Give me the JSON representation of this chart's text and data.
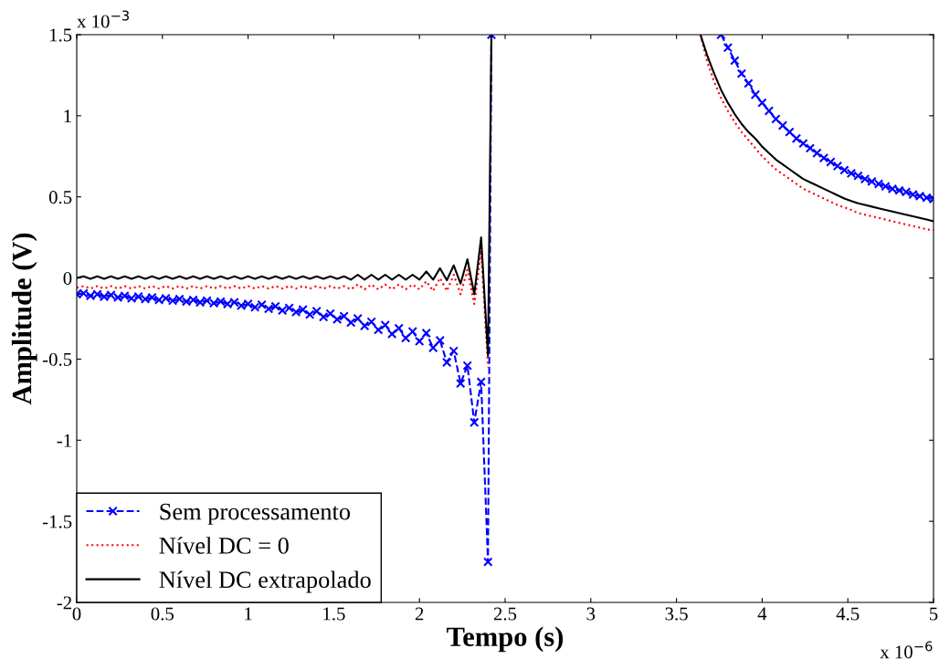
{
  "chart_data": {
    "type": "line",
    "xlabel": "Tempo (s)",
    "ylabel": "Amplitude (V)",
    "annotations": [
      "x 10$^{−3}$",
      "x 10$^{−6}$"
    ],
    "x": [
      0,
      0.04,
      0.08,
      0.12,
      0.16,
      0.2,
      0.24,
      0.28,
      0.32,
      0.36,
      0.4,
      0.44,
      0.48,
      0.52,
      0.56,
      0.6,
      0.64,
      0.68,
      0.72,
      0.76,
      0.8,
      0.84,
      0.88,
      0.92,
      0.96,
      1.0,
      1.04,
      1.08,
      1.12,
      1.16,
      1.2,
      1.24,
      1.28,
      1.32,
      1.36,
      1.4,
      1.44,
      1.48,
      1.52,
      1.56,
      1.6,
      1.64,
      1.68,
      1.72,
      1.76,
      1.8,
      1.84,
      1.88,
      1.92,
      1.96,
      2.0,
      2.04,
      2.08,
      2.12,
      2.16,
      2.2,
      2.24,
      2.28,
      2.32,
      2.36,
      2.4,
      2.42,
      3.0,
      3.64,
      3.68,
      3.72,
      3.76,
      3.8,
      3.84,
      3.88,
      3.92,
      3.96,
      4.0,
      4.04,
      4.08,
      4.12,
      4.16,
      4.2,
      4.24,
      4.28,
      4.32,
      4.36,
      4.4,
      4.44,
      4.48,
      4.52,
      4.56,
      4.6,
      4.64,
      4.68,
      4.72,
      4.76,
      4.8,
      4.84,
      4.88,
      4.92,
      4.96,
      5.0
    ],
    "series": [
      {
        "name": "Sem processamento",
        "color": "#0000ff",
        "line_style": "dashed",
        "marker": "cross",
        "values": [
          -0.1,
          -0.095,
          -0.11,
          -0.1,
          -0.115,
          -0.105,
          -0.12,
          -0.11,
          -0.125,
          -0.115,
          -0.13,
          -0.12,
          -0.135,
          -0.125,
          -0.14,
          -0.13,
          -0.145,
          -0.135,
          -0.15,
          -0.14,
          -0.155,
          -0.145,
          -0.16,
          -0.15,
          -0.17,
          -0.16,
          -0.18,
          -0.165,
          -0.19,
          -0.175,
          -0.2,
          -0.185,
          -0.21,
          -0.195,
          -0.225,
          -0.205,
          -0.24,
          -0.22,
          -0.255,
          -0.235,
          -0.275,
          -0.25,
          -0.295,
          -0.27,
          -0.32,
          -0.29,
          -0.345,
          -0.31,
          -0.37,
          -0.33,
          -0.39,
          -0.34,
          -0.43,
          -0.385,
          -0.52,
          -0.45,
          -0.65,
          -0.54,
          -0.89,
          -0.64,
          -1.75,
          1.5,
          null,
          null,
          null,
          null,
          1.5,
          1.42,
          1.34,
          1.26,
          1.2,
          1.13,
          1.08,
          1.03,
          0.98,
          0.94,
          0.9,
          0.86,
          0.83,
          0.8,
          0.77,
          0.74,
          0.715,
          0.69,
          0.665,
          0.645,
          0.63,
          0.61,
          0.595,
          0.58,
          0.565,
          0.55,
          0.54,
          0.53,
          0.515,
          0.505,
          0.495,
          0.487
        ]
      },
      {
        "name": "Nível DC = 0",
        "color": "#ff0000",
        "line_style": "dotted",
        "marker": "none",
        "values": [
          -0.06,
          -0.05,
          -0.065,
          -0.05,
          -0.065,
          -0.05,
          -0.065,
          -0.05,
          -0.065,
          -0.05,
          -0.065,
          -0.05,
          -0.065,
          -0.05,
          -0.065,
          -0.05,
          -0.065,
          -0.05,
          -0.065,
          -0.05,
          -0.065,
          -0.05,
          -0.065,
          -0.05,
          -0.065,
          -0.05,
          -0.065,
          -0.05,
          -0.065,
          -0.05,
          -0.065,
          -0.05,
          -0.065,
          -0.05,
          -0.065,
          -0.05,
          -0.065,
          -0.05,
          -0.065,
          -0.05,
          -0.07,
          -0.04,
          -0.07,
          -0.04,
          -0.07,
          -0.04,
          -0.07,
          -0.04,
          -0.07,
          -0.04,
          -0.07,
          -0.02,
          -0.08,
          0.0,
          -0.08,
          0.02,
          -0.1,
          0.05,
          -0.16,
          0.17,
          -0.55,
          null,
          null,
          1.5,
          1.33,
          1.21,
          1.11,
          1.03,
          0.96,
          0.9,
          0.85,
          0.8,
          0.75,
          0.71,
          0.67,
          0.64,
          0.61,
          0.58,
          0.55,
          0.53,
          0.51,
          0.49,
          0.47,
          0.45,
          0.435,
          0.42,
          0.4,
          0.39,
          0.38,
          0.37,
          0.36,
          0.35,
          0.34,
          0.33,
          0.32,
          0.31,
          0.3,
          0.295
        ]
      },
      {
        "name": "Nível DC extrapolado",
        "color": "#000000",
        "line_style": "solid",
        "marker": "none",
        "values": [
          0.0,
          0.01,
          -0.005,
          0.01,
          -0.005,
          0.01,
          -0.005,
          0.01,
          -0.005,
          0.01,
          -0.005,
          0.01,
          -0.005,
          0.01,
          -0.005,
          0.01,
          -0.005,
          0.01,
          -0.005,
          0.01,
          -0.005,
          0.01,
          -0.005,
          0.01,
          -0.005,
          0.01,
          -0.005,
          0.01,
          -0.005,
          0.01,
          -0.005,
          0.01,
          -0.005,
          0.01,
          -0.005,
          0.01,
          -0.005,
          0.01,
          -0.005,
          0.01,
          -0.01,
          0.02,
          -0.01,
          0.02,
          -0.01,
          0.02,
          -0.01,
          0.02,
          -0.01,
          0.02,
          -0.01,
          0.04,
          -0.01,
          0.06,
          -0.014,
          0.078,
          -0.035,
          0.116,
          -0.1,
          0.25,
          -0.48,
          1.5,
          null,
          1.5,
          1.37,
          1.26,
          1.16,
          1.08,
          1.01,
          0.95,
          0.9,
          0.86,
          0.81,
          0.77,
          0.73,
          0.7,
          0.67,
          0.64,
          0.61,
          0.59,
          0.57,
          0.55,
          0.53,
          0.51,
          0.49,
          0.475,
          0.46,
          0.45,
          0.44,
          0.43,
          0.42,
          0.41,
          0.4,
          0.39,
          0.38,
          0.37,
          0.36,
          0.35
        ]
      }
    ],
    "xlim": [
      0,
      5
    ],
    "xticks": [
      0,
      0.5,
      1,
      1.5,
      2,
      2.5,
      3,
      3.5,
      4,
      4.5,
      5
    ],
    "ylim": [
      -2,
      1.5
    ],
    "yticks": [
      -2,
      -1.5,
      -1,
      -0.5,
      0,
      0.5,
      1,
      1.5
    ],
    "grid": false,
    "legend": "bottom left"
  }
}
